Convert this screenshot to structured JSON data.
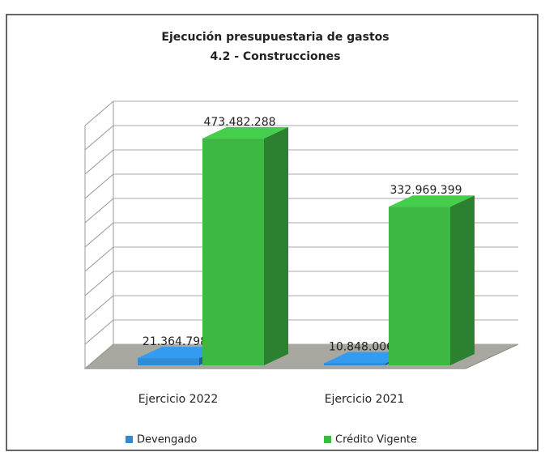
{
  "chart_data": {
    "type": "bar3d",
    "title": "Ejecución presupuestaria de gastos",
    "subtitle": "4.2 - Construcciones",
    "categories": [
      "Ejercicio 2022",
      "Ejercicio 2021"
    ],
    "series": [
      {
        "name": "Devengado",
        "color": "#2e8bd6",
        "values": [
          21364798,
          10848006
        ],
        "value_labels": [
          "21.364.798",
          "10.848.006"
        ]
      },
      {
        "name": "Crédito Vigente",
        "color": "#3db843",
        "values": [
          473482288,
          332969399
        ],
        "value_labels": [
          "473.482.288",
          "332.969.399"
        ]
      }
    ],
    "ylim": [
      0,
      500000000
    ],
    "yticks": [
      0,
      50000000,
      100000000,
      150000000,
      200000000,
      250000000,
      300000000,
      350000000,
      400000000,
      450000000,
      500000000
    ],
    "grid": true,
    "legend": "bottom"
  }
}
